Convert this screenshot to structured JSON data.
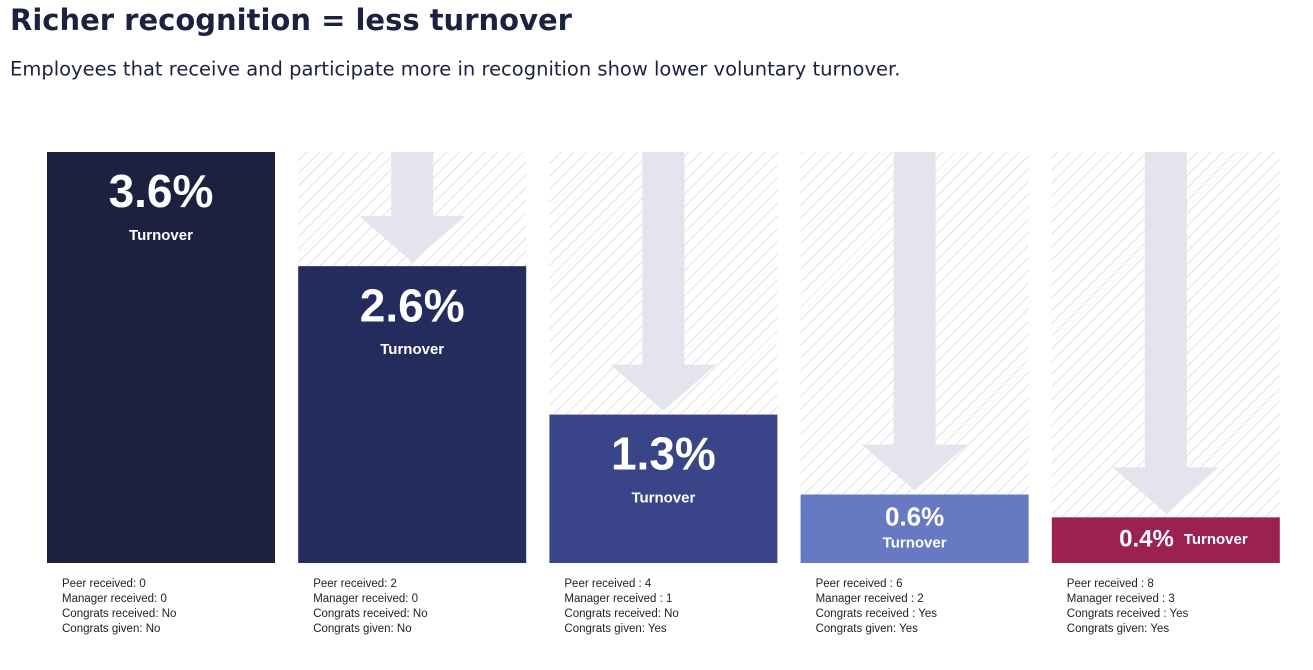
{
  "chart_data": {
    "type": "bar",
    "title": "Richer recognition = less turnover",
    "subtitle": "Employees that receive and participate more in recognition show lower voluntary turnover.",
    "categories": [
      [
        "Peer received: 0",
        "Manager received: 0",
        "Congrats received: No",
        "Congrats given: No"
      ],
      [
        "Peer received: 2",
        "Manager received: 0",
        "Congrats received: No",
        "Congrats given: No"
      ],
      [
        "Peer received : 4",
        "Manager received : 1",
        "Congrats received: No",
        "Congrats given: Yes"
      ],
      [
        "Peer received : 6",
        "Manager received : 2",
        "Congrats received : Yes",
        "Congrats given: Yes"
      ],
      [
        "Peer received : 8",
        "Manager received : 3",
        "Congrats received : Yes",
        "Congrats given: Yes"
      ]
    ],
    "values": [
      3.6,
      2.6,
      1.3,
      0.6,
      0.4
    ],
    "value_labels": [
      "3.6%",
      "2.6%",
      "1.3%",
      "0.6%",
      "0.4%"
    ],
    "value_caption": "Turnover",
    "colors": [
      "#1c2140",
      "#232c5c",
      "#3a4589",
      "#6879c4",
      "#9b2150"
    ],
    "ylim": [
      0,
      3.6
    ]
  }
}
